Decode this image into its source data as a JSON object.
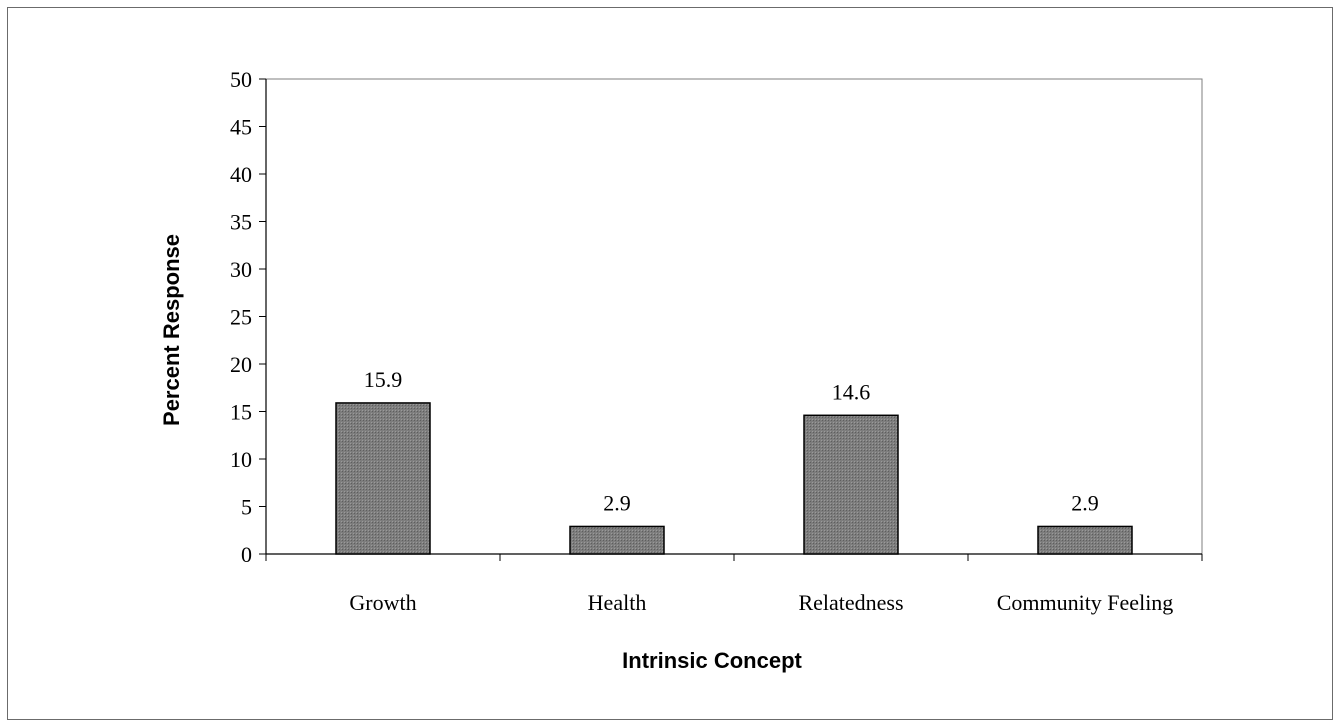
{
  "chart_data": {
    "type": "bar",
    "categories": [
      "Growth",
      "Health",
      "Relatedness",
      "Community Feeling"
    ],
    "values": [
      15.9,
      2.9,
      14.6,
      2.9
    ],
    "value_labels": [
      "15.9",
      "2.9",
      "14.6",
      "2.9"
    ],
    "xlabel": "Intrinsic Concept",
    "ylabel": "Percent Response",
    "ylim": [
      0,
      50
    ],
    "yticks": [
      0,
      5,
      10,
      15,
      20,
      25,
      30,
      35,
      40,
      45,
      50
    ],
    "grid": false,
    "legend": "none",
    "bar_color": "#7a7a7a",
    "bar_edge_color": "#000000"
  }
}
